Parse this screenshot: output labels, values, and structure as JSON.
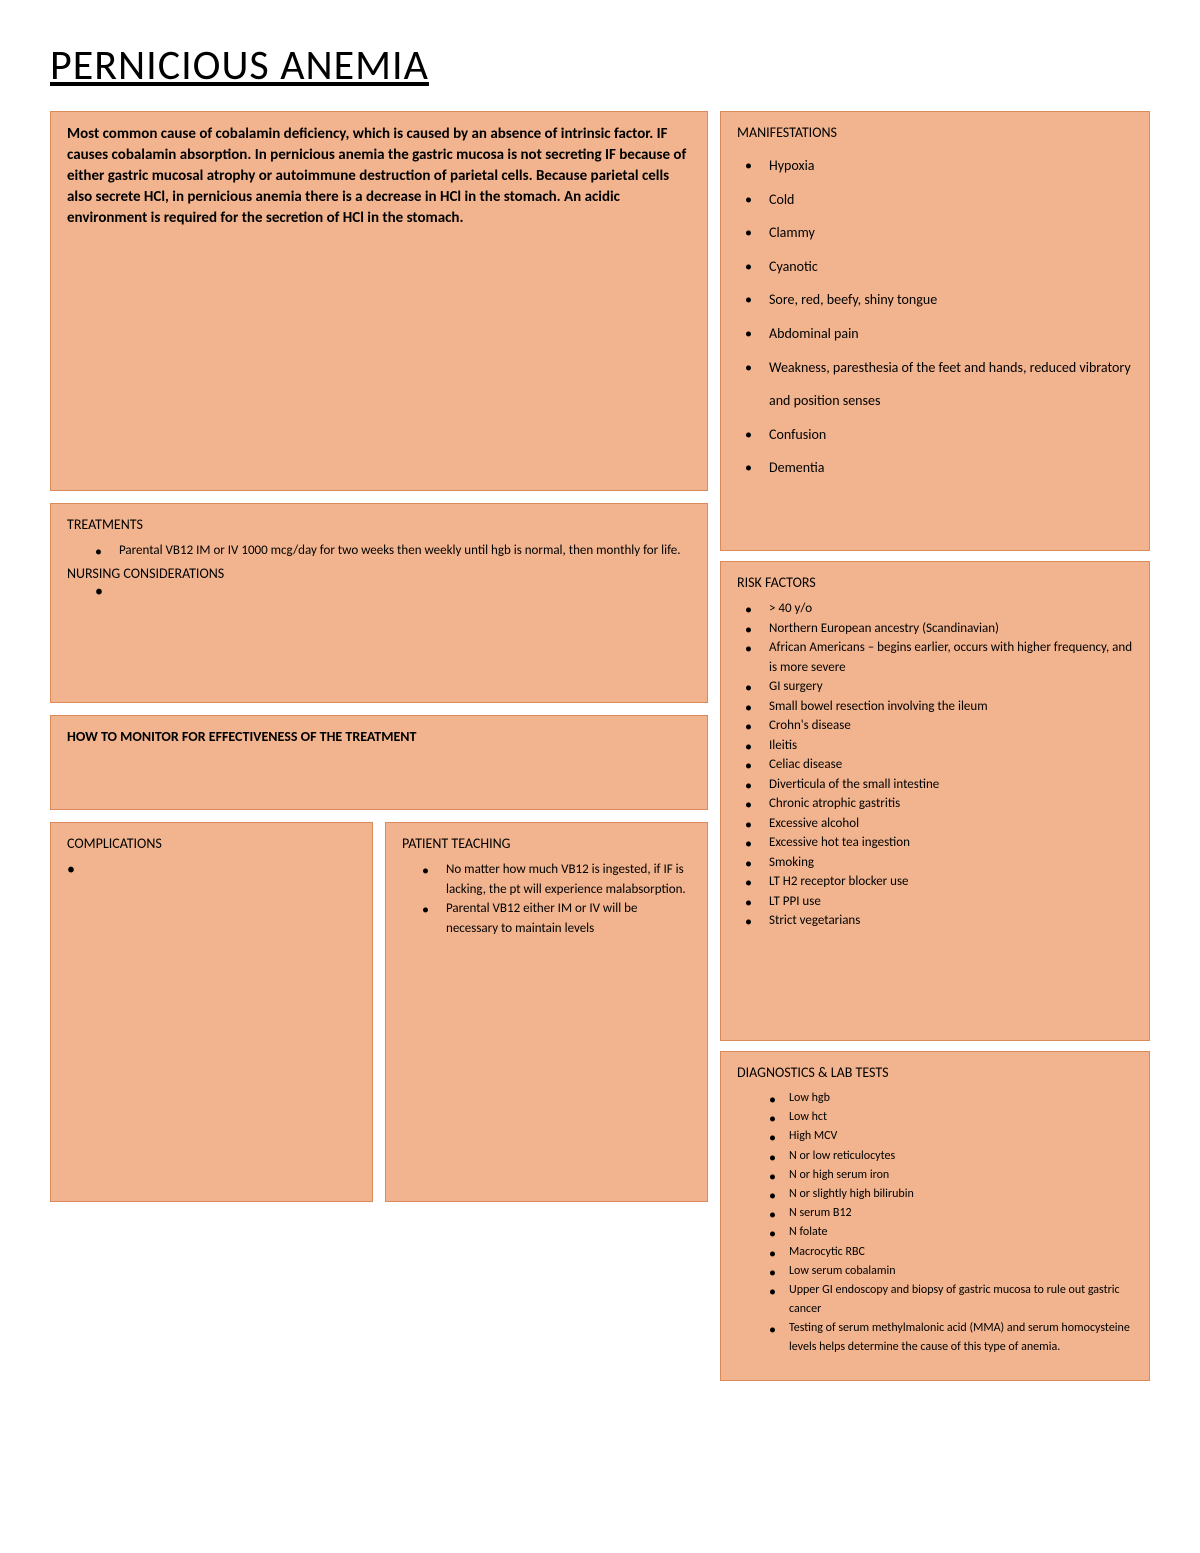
{
  "title": "PERNICIOUS ANEMIA",
  "intro": "Most common cause of cobalamin deficiency, which is caused by an absence of intrinsic factor. IF causes cobalamin absorption. In pernicious anemia the gastric mucosa is not secreting IF because of either gastric mucosal atrophy or autoimmune destruction of parietal cells. Because parietal cells also secrete HCl, in pernicious anemia there is a decrease in HCl in the stomach. An acidic environment is required for the secretion of HCl in the stomach.",
  "manifestations": {
    "header": "MANIFESTATIONS",
    "items": [
      "Hypoxia",
      "Cold",
      "Clammy",
      "Cyanotic",
      "Sore, red, beefy, shiny tongue",
      "Abdominal pain",
      "Weakness, paresthesia of the feet and hands, reduced vibratory and position senses",
      "Confusion",
      "Dementia"
    ]
  },
  "treatments": {
    "header": "TREATMENTS",
    "items": [
      "Parental VB12 IM or IV 1000 mcg/day for two weeks then weekly until hgb is normal, then monthly for life."
    ],
    "nursing_header": "NURSING CONSIDERATIONS"
  },
  "monitor": {
    "header": "HOW TO MONITOR FOR EFFECTIVENESS OF THE TREATMENT"
  },
  "complications": {
    "header": "COMPLICATIONS"
  },
  "patient_teaching": {
    "header": "PATIENT TEACHING",
    "items": [
      "No matter how much VB12 is ingested, if IF is lacking, the pt will experience malabsorption.",
      "Parental VB12 either IM or IV will be necessary to maintain levels"
    ]
  },
  "risk_factors": {
    "header": "RISK FACTORS",
    "items": [
      "> 40 y/o",
      "Northern European ancestry (Scandinavian)",
      "African Americans – begins earlier, occurs with higher frequency, and is more severe",
      "GI surgery",
      "Small bowel resection involving the ileum",
      "Crohn's disease",
      "Ileitis",
      "Celiac disease",
      "Diverticula of the small intestine",
      "Chronic atrophic gastritis",
      "Excessive alcohol",
      "Excessive hot tea ingestion",
      "Smoking",
      "LT H2 receptor blocker use",
      "LT PPI use",
      "Strict vegetarians"
    ]
  },
  "diagnostics": {
    "header": "DIAGNOSTICS & LAB TESTS",
    "items": [
      "Low hgb",
      "Low hct",
      "High MCV",
      "N or low reticulocytes",
      "N or high serum iron",
      "N or slightly high bilirubin",
      "N serum B12",
      "N folate",
      "Macrocytic RBC",
      "Low serum cobalamin",
      "Upper GI endoscopy and biopsy of gastric mucosa to rule out gastric cancer",
      "Testing of serum methylmalonic acid (MMA) and serum homocysteine levels helps determine the cause of this type of anemia."
    ]
  },
  "colors": {
    "box_bg": "#f2b48f",
    "box_border": "#d88a5a",
    "page_bg": "#ffffff",
    "text": "#000000"
  }
}
